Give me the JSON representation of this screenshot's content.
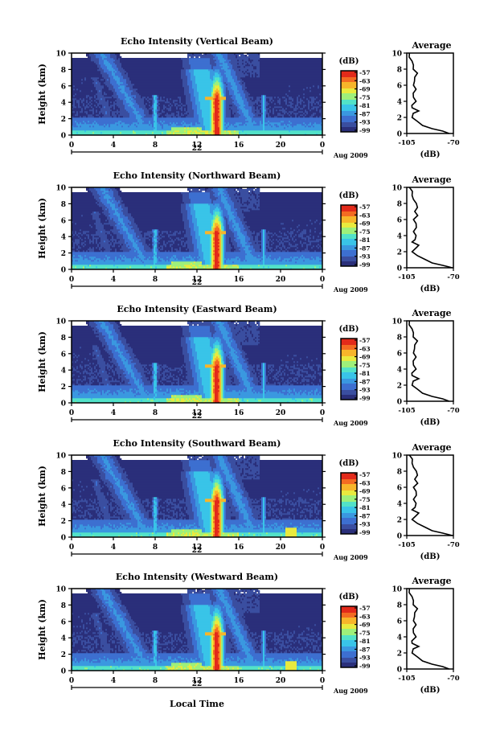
{
  "panels": [
    {
      "title": "Echo Intensity (Vertical Beam)"
    },
    {
      "title": "Echo Intensity (Northward Beam)"
    },
    {
      "title": "Echo Intensity (Eastward Beam)"
    },
    {
      "title": "Echo Intensity (Southward Beam)"
    },
    {
      "title": "Echo Intensity (Westward Beam)"
    }
  ],
  "common": {
    "ylabel": "Height (km)",
    "xlabel": "Local Time",
    "day_label": "22",
    "month_label": "Aug 2009",
    "colorbar_unit": "(dB)",
    "colorbar_ticks": [
      "-57",
      "-63",
      "-69",
      "-75",
      "-81",
      "-87",
      "-93",
      "-99"
    ],
    "avg_title": "Average",
    "avg_xlabel": "(dB)"
  },
  "chart_data": {
    "type": "heatmap",
    "x_unit": "hour (local time)",
    "x_ticks": [
      "0",
      "4",
      "8",
      "12",
      "16",
      "20",
      "0"
    ],
    "xlim": [
      0,
      24
    ],
    "ylim": [
      0,
      10
    ],
    "y_ticks": [
      "0",
      "2",
      "4",
      "6",
      "8",
      "10"
    ],
    "color_range_db": [
      -99,
      -57
    ],
    "colormap": [
      "#2a2f7a",
      "#3a4ea0",
      "#3d6fd0",
      "#3a98e0",
      "#39c4e8",
      "#52e2c8",
      "#9ef07a",
      "#e9ea3e",
      "#f7b52a",
      "#f36b22",
      "#e22a1a"
    ],
    "avg_profile": {
      "x_ticks": [
        "-105",
        "-70"
      ],
      "xlim": [
        -105,
        -70
      ],
      "height_km": [
        0,
        0.3,
        0.6,
        1.0,
        1.5,
        2.0,
        2.5,
        2.8,
        3.2,
        3.5,
        4.0,
        4.5,
        5.0,
        5.5,
        6.0,
        6.5,
        7.0,
        7.5,
        8.0,
        8.5,
        9.0,
        9.5,
        10.0
      ],
      "mean_db": [
        -72,
        -78,
        -86,
        -92,
        -97,
        -101,
        -99,
        -96,
        -101,
        -100,
        -98,
        -100,
        -99,
        -98,
        -100,
        -98,
        -99,
        -97,
        -99,
        -100,
        -101,
        -102,
        -103
      ]
    }
  }
}
